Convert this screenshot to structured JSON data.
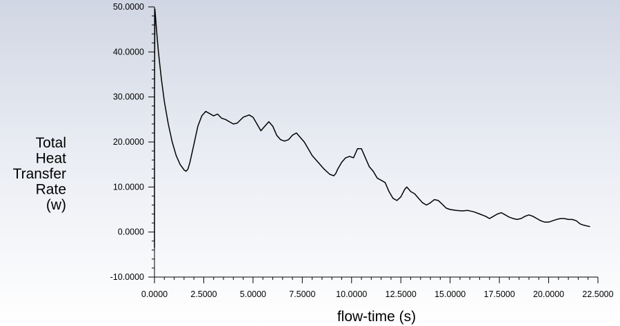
{
  "chart_data": {
    "type": "line",
    "title": "",
    "xlabel": "flow-time (s)",
    "ylabel_lines": [
      "Total",
      "Heat",
      "Transfer",
      "Rate",
      "(w)"
    ],
    "xlim": [
      0,
      22.5
    ],
    "ylim": [
      -10,
      50
    ],
    "x_ticks": [
      "0.0000",
      "2.5000",
      "5.0000",
      "7.5000",
      "10.0000",
      "12.5000",
      "15.0000",
      "17.5000",
      "20.0000",
      "22.5000"
    ],
    "y_ticks": [
      "50.0000",
      "40.0000",
      "30.0000",
      "20.0000",
      "10.0000",
      "0.0000",
      "-10.0000"
    ],
    "grid": false,
    "series": [
      {
        "color": "#000000",
        "x": [
          0.0,
          0.0,
          0.02,
          0.05,
          0.1,
          0.2,
          0.35,
          0.5,
          0.7,
          0.9,
          1.1,
          1.3,
          1.5,
          1.6,
          1.7,
          1.8,
          2.0,
          2.2,
          2.4,
          2.6,
          2.8,
          3.0,
          3.2,
          3.4,
          3.6,
          3.8,
          4.0,
          4.2,
          4.5,
          4.8,
          5.0,
          5.2,
          5.4,
          5.6,
          5.8,
          6.0,
          6.2,
          6.4,
          6.6,
          6.8,
          7.0,
          7.2,
          7.4,
          7.6,
          7.8,
          8.0,
          8.3,
          8.6,
          8.9,
          9.1,
          9.2,
          9.3,
          9.5,
          9.7,
          9.9,
          10.1,
          10.3,
          10.5,
          10.7,
          10.9,
          11.1,
          11.3,
          11.5,
          11.7,
          11.9,
          12.1,
          12.3,
          12.5,
          12.7,
          12.8,
          12.9,
          13.0,
          13.2,
          13.4,
          13.6,
          13.8,
          14.0,
          14.2,
          14.4,
          14.6,
          14.8,
          15.0,
          15.3,
          15.6,
          15.9,
          16.2,
          16.5,
          16.8,
          17.0,
          17.2,
          17.4,
          17.6,
          17.8,
          18.0,
          18.2,
          18.4,
          18.6,
          18.8,
          19.0,
          19.2,
          19.4,
          19.6,
          19.8,
          20.0,
          20.2,
          20.4,
          20.6,
          20.8,
          21.0,
          21.2,
          21.4,
          21.6,
          21.8,
          22.0,
          22.1
        ],
        "y": [
          -3.5,
          30.0,
          49.5,
          48.0,
          45.0,
          40.0,
          34.0,
          29.0,
          24.0,
          20.0,
          17.0,
          15.0,
          13.8,
          13.5,
          14.0,
          15.5,
          19.5,
          23.5,
          25.8,
          26.8,
          26.3,
          25.8,
          26.2,
          25.3,
          25.0,
          24.5,
          24.0,
          24.2,
          25.5,
          26.0,
          25.5,
          24.0,
          22.5,
          23.5,
          24.5,
          23.5,
          21.5,
          20.5,
          20.2,
          20.5,
          21.5,
          22.0,
          21.0,
          20.0,
          18.5,
          17.0,
          15.5,
          14.0,
          12.8,
          12.5,
          13.0,
          14.0,
          15.5,
          16.5,
          16.8,
          16.5,
          18.5,
          18.5,
          16.5,
          14.5,
          13.5,
          12.0,
          11.5,
          11.0,
          9.0,
          7.5,
          7.0,
          7.8,
          9.5,
          10.0,
          9.5,
          9.0,
          8.5,
          7.5,
          6.5,
          6.0,
          6.5,
          7.2,
          7.0,
          6.2,
          5.3,
          5.0,
          4.8,
          4.7,
          4.8,
          4.5,
          4.0,
          3.5,
          3.0,
          3.5,
          4.0,
          4.3,
          3.8,
          3.3,
          3.0,
          2.8,
          3.0,
          3.5,
          3.8,
          3.5,
          3.0,
          2.5,
          2.2,
          2.2,
          2.5,
          2.8,
          3.0,
          3.0,
          2.8,
          2.8,
          2.5,
          1.8,
          1.5,
          1.3,
          1.2
        ]
      }
    ]
  }
}
